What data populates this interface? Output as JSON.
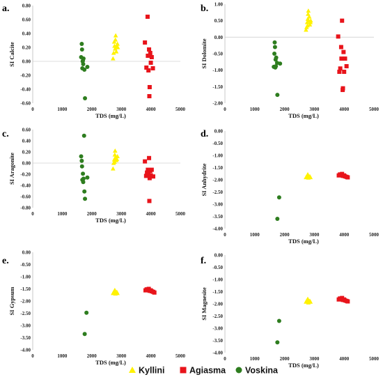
{
  "chart_data": [
    {
      "type": "scatter",
      "panel_label": "a.",
      "xlabel": "TDS (mg/L)",
      "ylabel": "SI Calcite",
      "xlim": [
        0,
        5000
      ],
      "ylim": [
        -0.6,
        0.8
      ],
      "xticks": [
        0,
        1000,
        2000,
        3000,
        4000,
        5000
      ],
      "yticks": [
        -0.6,
        -0.4,
        -0.2,
        0.0,
        0.2,
        0.4,
        0.6,
        0.8
      ],
      "ytick_labels": [
        "-0.60",
        "-0.40",
        "-0.20",
        "0.00",
        "0.20",
        "0.40",
        "0.60",
        "0.80"
      ],
      "series": [
        {
          "name": "Kyllini",
          "marker": "triangle",
          "color": "#FFF200",
          "points": [
            [
              2720,
              0.04
            ],
            [
              2740,
              0.12
            ],
            [
              2770,
              0.22
            ],
            [
              2790,
              0.18
            ],
            [
              2800,
              0.31
            ],
            [
              2810,
              0.37
            ],
            [
              2820,
              0.2
            ],
            [
              2830,
              0.14
            ],
            [
              2850,
              0.21
            ],
            [
              2870,
              0.25
            ],
            [
              2880,
              0.2
            ],
            [
              2760,
              0.28
            ]
          ]
        },
        {
          "name": "Agiasma",
          "marker": "square",
          "color": "#E8141B",
          "points": [
            [
              3800,
              0.27
            ],
            [
              3850,
              -0.09
            ],
            [
              3890,
              0.64
            ],
            [
              3900,
              0.08
            ],
            [
              3920,
              -0.13
            ],
            [
              3940,
              0.17
            ],
            [
              3950,
              -0.5
            ],
            [
              3960,
              -0.37
            ],
            [
              3980,
              0.12
            ],
            [
              4000,
              -0.02
            ],
            [
              4030,
              0.06
            ],
            [
              4070,
              -0.1
            ]
          ]
        },
        {
          "name": "Voskina",
          "marker": "circle",
          "color": "#2E7D1F",
          "points": [
            [
              1640,
              0.06
            ],
            [
              1660,
              0.25
            ],
            [
              1670,
              0.17
            ],
            [
              1680,
              -0.1
            ],
            [
              1700,
              0.01
            ],
            [
              1710,
              -0.04
            ],
            [
              1720,
              0.04
            ],
            [
              1750,
              -0.12
            ],
            [
              1770,
              -0.53
            ],
            [
              1850,
              -0.08
            ],
            [
              1690,
              0.0
            ]
          ]
        }
      ]
    },
    {
      "type": "scatter",
      "panel_label": "b.",
      "xlabel": "TDS (mg/L)",
      "ylabel": "SI Dolomite",
      "xlim": [
        0,
        5000
      ],
      "ylim": [
        -2.0,
        1.0
      ],
      "xticks": [
        0,
        1000,
        2000,
        3000,
        4000,
        5000
      ],
      "yticks": [
        -2.0,
        -1.5,
        -1.0,
        -0.5,
        0.0,
        0.5,
        1.0
      ],
      "ytick_labels": [
        "-2.00",
        "-1.50",
        "-1.00",
        "-0.50",
        "0.00",
        "0.50",
        "1.00"
      ],
      "series": [
        {
          "name": "Kyllini",
          "marker": "triangle",
          "color": "#FFF200",
          "points": [
            [
              2720,
              0.22
            ],
            [
              2740,
              0.3
            ],
            [
              2760,
              0.45
            ],
            [
              2780,
              0.55
            ],
            [
              2790,
              0.7
            ],
            [
              2800,
              0.8
            ],
            [
              2810,
              0.5
            ],
            [
              2830,
              0.62
            ],
            [
              2850,
              0.38
            ],
            [
              2870,
              0.45
            ],
            [
              2880,
              0.5
            ],
            [
              2770,
              0.35
            ]
          ]
        },
        {
          "name": "Agiasma",
          "marker": "square",
          "color": "#E8141B",
          "points": [
            [
              3800,
              0.02
            ],
            [
              3840,
              -1.05
            ],
            [
              3870,
              -0.95
            ],
            [
              3900,
              -0.3
            ],
            [
              3910,
              -0.65
            ],
            [
              3930,
              0.5
            ],
            [
              3950,
              -1.6
            ],
            [
              3960,
              -1.55
            ],
            [
              3980,
              -0.45
            ],
            [
              4000,
              -1.05
            ],
            [
              4030,
              -0.65
            ],
            [
              4080,
              -0.88
            ]
          ]
        },
        {
          "name": "Voskina",
          "marker": "circle",
          "color": "#2E7D1F",
          "points": [
            [
              1640,
              -0.9
            ],
            [
              1660,
              -0.5
            ],
            [
              1670,
              -0.16
            ],
            [
              1680,
              -0.3
            ],
            [
              1700,
              -0.68
            ],
            [
              1710,
              -0.88
            ],
            [
              1720,
              -0.62
            ],
            [
              1750,
              -0.78
            ],
            [
              1760,
              -1.75
            ],
            [
              1850,
              -0.8
            ],
            [
              1690,
              -0.92
            ]
          ]
        }
      ]
    },
    {
      "type": "scatter",
      "panel_label": "c.",
      "xlabel": "TDS (mg/L)",
      "ylabel": "SI Aragonite",
      "xlim": [
        0,
        5000
      ],
      "ylim": [
        -0.8,
        0.6
      ],
      "xticks": [
        0,
        1000,
        2000,
        3000,
        4000,
        5000
      ],
      "yticks": [
        -0.8,
        -0.6,
        -0.4,
        -0.2,
        0.0,
        0.2,
        0.4,
        0.6
      ],
      "ytick_labels": [
        "-0.80",
        "-0.60",
        "-0.40",
        "-0.20",
        "0.00",
        "0.20",
        "0.40",
        "0.60"
      ],
      "series": [
        {
          "name": "Kyllini",
          "marker": "triangle",
          "color": "#FFF200",
          "points": [
            [
              2720,
              -0.1
            ],
            [
              2740,
              0.0
            ],
            [
              2760,
              0.06
            ],
            [
              2780,
              0.15
            ],
            [
              2790,
              0.22
            ],
            [
              2800,
              0.1
            ],
            [
              2810,
              0.06
            ],
            [
              2830,
              0.05
            ],
            [
              2850,
              0.07
            ],
            [
              2870,
              0.12
            ],
            [
              2770,
              0.02
            ]
          ]
        },
        {
          "name": "Agiasma",
          "marker": "square",
          "color": "#E8141B",
          "points": [
            [
              3800,
              0.03
            ],
            [
              3840,
              -0.23
            ],
            [
              3870,
              -0.17
            ],
            [
              3900,
              -0.12
            ],
            [
              3920,
              -0.2
            ],
            [
              3940,
              0.09
            ],
            [
              3950,
              -0.68
            ],
            [
              3960,
              -0.27
            ],
            [
              3980,
              -0.14
            ],
            [
              4000,
              -0.22
            ],
            [
              4030,
              -0.12
            ],
            [
              4080,
              -0.24
            ]
          ]
        },
        {
          "name": "Voskina",
          "marker": "circle",
          "color": "#2E7D1F",
          "points": [
            [
              1640,
              0.12
            ],
            [
              1660,
              0.04
            ],
            [
              1670,
              -0.06
            ],
            [
              1680,
              -0.3
            ],
            [
              1700,
              -0.19
            ],
            [
              1710,
              -0.34
            ],
            [
              1720,
              -0.28
            ],
            [
              1740,
              0.49
            ],
            [
              1750,
              -0.51
            ],
            [
              1770,
              -0.64
            ],
            [
              1850,
              -0.26
            ]
          ]
        }
      ]
    },
    {
      "type": "scatter",
      "panel_label": "d.",
      "xlabel": "TDS (mg/L)",
      "ylabel": "SI Anhydrite",
      "xlim": [
        0,
        5000
      ],
      "ylim": [
        -4.0,
        0.0
      ],
      "xticks": [
        0,
        1000,
        2000,
        3000,
        4000,
        5000
      ],
      "yticks": [
        -4.0,
        -3.5,
        -3.0,
        -2.5,
        -2.0,
        -1.5,
        -1.0,
        -0.5,
        0.0
      ],
      "ytick_labels": [
        "-4.00",
        "-3.50",
        "-3.00",
        "-2.50",
        "-2.00",
        "-1.50",
        "-1.00",
        "-0.50",
        "0.00"
      ],
      "series": [
        {
          "name": "Kyllini",
          "marker": "triangle",
          "color": "#FFF200",
          "points": [
            [
              2720,
              -1.9
            ],
            [
              2750,
              -1.85
            ],
            [
              2780,
              -1.78
            ],
            [
              2800,
              -1.92
            ],
            [
              2820,
              -1.88
            ],
            [
              2850,
              -1.86
            ],
            [
              2870,
              -1.9
            ],
            [
              2790,
              -1.82
            ]
          ]
        },
        {
          "name": "Agiasma",
          "marker": "square",
          "color": "#E8141B",
          "points": [
            [
              3820,
              -1.82
            ],
            [
              3860,
              -1.78
            ],
            [
              3900,
              -1.8
            ],
            [
              3930,
              -1.76
            ],
            [
              3960,
              -1.84
            ],
            [
              4000,
              -1.82
            ],
            [
              4030,
              -1.86
            ],
            [
              4080,
              -1.88
            ],
            [
              4120,
              -1.9
            ]
          ]
        },
        {
          "name": "Voskina",
          "marker": "circle",
          "color": "#2E7D1F",
          "points": [
            [
              1760,
              -3.6
            ],
            [
              1820,
              -2.72
            ]
          ]
        }
      ]
    },
    {
      "type": "scatter",
      "panel_label": "e.",
      "xlabel": "TDS (mg/L)",
      "ylabel": "SI Gypsum",
      "xlim": [
        0,
        5000
      ],
      "ylim": [
        -4.0,
        0.0
      ],
      "xticks": [
        0,
        1000,
        2000,
        3000,
        4000,
        5000
      ],
      "yticks": [
        -4.0,
        -3.5,
        -3.0,
        -2.5,
        -2.0,
        -1.5,
        -1.0,
        -0.5,
        0.0
      ],
      "ytick_labels": [
        "-4.00",
        "-3.50",
        "-3.00",
        "-2.50",
        "-2.00",
        "-1.50",
        "-1.00",
        "-0.50",
        "0.00"
      ],
      "series": [
        {
          "name": "Kyllini",
          "marker": "triangle",
          "color": "#FFF200",
          "points": [
            [
              2720,
              -1.68
            ],
            [
              2750,
              -1.62
            ],
            [
              2780,
              -1.55
            ],
            [
              2800,
              -1.7
            ],
            [
              2820,
              -1.65
            ],
            [
              2850,
              -1.63
            ],
            [
              2870,
              -1.68
            ],
            [
              2790,
              -1.6
            ]
          ]
        },
        {
          "name": "Agiasma",
          "marker": "square",
          "color": "#E8141B",
          "points": [
            [
              3820,
              -1.56
            ],
            [
              3860,
              -1.52
            ],
            [
              3900,
              -1.55
            ],
            [
              3930,
              -1.5
            ],
            [
              3960,
              -1.58
            ],
            [
              4000,
              -1.56
            ],
            [
              4030,
              -1.6
            ],
            [
              4080,
              -1.62
            ],
            [
              4120,
              -1.65
            ]
          ]
        },
        {
          "name": "Voskina",
          "marker": "circle",
          "color": "#2E7D1F",
          "points": [
            [
              1760,
              -3.35
            ],
            [
              1820,
              -2.48
            ]
          ]
        }
      ]
    },
    {
      "type": "scatter",
      "panel_label": "f.",
      "xlabel": "TDS (mg/L)",
      "ylabel": "SI Magnesite",
      "xlim": [
        0,
        5000
      ],
      "ylim": [
        -4.0,
        0.0
      ],
      "xticks": [
        0,
        1000,
        2000,
        3000,
        4000,
        5000
      ],
      "yticks": [
        -4.0,
        -3.5,
        -3.0,
        -2.5,
        -2.0,
        -1.5,
        -1.0,
        -0.5,
        0.0
      ],
      "ytick_labels": [
        "-4.00",
        "-3.50",
        "-3.00",
        "-2.50",
        "-2.00",
        "-1.50",
        "-1.00",
        "-0.50",
        "0.00"
      ],
      "series": [
        {
          "name": "Kyllini",
          "marker": "triangle",
          "color": "#FFF200",
          "points": [
            [
              2720,
              -1.92
            ],
            [
              2750,
              -1.86
            ],
            [
              2780,
              -1.8
            ],
            [
              2800,
              -1.95
            ],
            [
              2820,
              -1.9
            ],
            [
              2850,
              -1.88
            ],
            [
              2870,
              -1.92
            ],
            [
              2790,
              -1.84
            ]
          ]
        },
        {
          "name": "Agiasma",
          "marker": "square",
          "color": "#E8141B",
          "points": [
            [
              3820,
              -1.82
            ],
            [
              3860,
              -1.78
            ],
            [
              3900,
              -1.8
            ],
            [
              3930,
              -1.76
            ],
            [
              3960,
              -1.84
            ],
            [
              4000,
              -1.82
            ],
            [
              4030,
              -1.86
            ],
            [
              4080,
              -1.88
            ],
            [
              4120,
              -1.9
            ]
          ]
        },
        {
          "name": "Voskina",
          "marker": "circle",
          "color": "#2E7D1F",
          "points": [
            [
              1760,
              -3.58
            ],
            [
              1820,
              -2.7
            ]
          ]
        }
      ]
    }
  ],
  "legend": {
    "placement": "bottom-center",
    "items": [
      {
        "label": "Kyllini",
        "marker": "triangle",
        "color": "#FFF200"
      },
      {
        "label": "Agiasma",
        "marker": "square",
        "color": "#E8141B"
      },
      {
        "label": "Voskina",
        "marker": "circle",
        "color": "#2E7D1F"
      }
    ]
  }
}
